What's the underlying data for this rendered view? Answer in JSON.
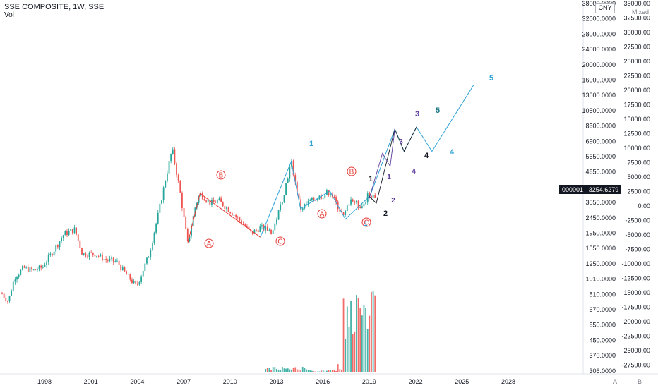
{
  "header": {
    "title": "SSE COMPOSITE, 1W, SSE",
    "volume_label": "Vol"
  },
  "currency_badge": "CNY",
  "scale_mode": "Mixed",
  "price_tag": {
    "symbol": "000001",
    "value": "3254.6279"
  },
  "axis_left_labels": [
    "38000.0000",
    "32000.0000",
    "28000.0000",
    "24000.0000",
    "20000.0000",
    "16000.0000",
    "13000.0000",
    "10500.0000",
    "8500.0000",
    "6900.0000",
    "5650.0000",
    "4650.0000",
    "3850.0000",
    "3050.0000",
    "2450.0000",
    "1950.0000",
    "1550.0000",
    "1250.0000",
    "1010.0000",
    "810.0000",
    "670.0000",
    "550.0000",
    "450.0000",
    "370.0000",
    "306.0000"
  ],
  "axis_right_labels": [
    "35000.00",
    "32500.00",
    "30000.00",
    "27500.00",
    "25000.00",
    "22500.00",
    "20000.00",
    "17500.00",
    "15000.00",
    "12500.00",
    "10000.00",
    "7500.00",
    "5000.00",
    "2500.00",
    "0.00",
    "-2500.00",
    "-5000.00",
    "-7500.00",
    "-10000.00",
    "-12500.00",
    "-15000.00",
    "-17500.00",
    "-20000.00",
    "-22500.00",
    "-25000.00",
    "-27500.00"
  ],
  "time_axis": [
    "1998",
    "2001",
    "2004",
    "2007",
    "2010",
    "2013",
    "2016",
    "2019",
    "2022",
    "2025",
    "2028"
  ],
  "corner_buttons": [
    "A",
    "B"
  ],
  "wave_labels": {
    "red": [
      "A",
      "B",
      "C",
      "A",
      "B",
      "C"
    ],
    "cyan": [
      "1",
      "4",
      "5"
    ],
    "black": [
      "1",
      "2",
      "4"
    ],
    "purple": [
      "1",
      "2",
      "3",
      "4",
      "3"
    ],
    "teal": [
      "5"
    ],
    "blue": [
      "1"
    ]
  },
  "colors": {
    "up": "#26a69a",
    "down": "#ef5350",
    "line": "#ef5350",
    "wave_red": "#e53935",
    "wave_cyan": "#2ea3d8",
    "wave_black": "#131722",
    "wave_purple": "#5b3c9a",
    "wave_teal": "#1b7a86",
    "price_tag_bg": "#131722",
    "price_tag_text": "#ffffff",
    "axis_text": "#131722",
    "grid": "#ffffff"
  },
  "chart_data": {
    "type": "line",
    "title": "SSE COMPOSITE, 1W, SSE",
    "xlabel": "",
    "ylabel": "",
    "scale": "log",
    "ylim": [
      306,
      38000
    ],
    "x": [
      1996.8,
      1997.2,
      1997.6,
      1998.2,
      1998.8,
      1999.4,
      2000.2,
      2000.8,
      2001.5,
      2002.0,
      2002.8,
      2003.5,
      2004.2,
      2004.8,
      2005.5,
      2006.3,
      2006.9,
      2007.4,
      2007.8,
      2008.3,
      2008.8,
      2009.3,
      2009.6,
      2010.3,
      2010.8,
      2011.6,
      2012.3,
      2012.9,
      2013.5,
      2014.3,
      2014.9,
      2015.3,
      2015.5,
      2015.9,
      2016.1,
      2016.8,
      2017.5,
      2018.0,
      2018.6,
      2018.9,
      2019.3,
      2019.8,
      2020.1,
      2020.5,
      2020.9
    ],
    "values": [
      950,
      860,
      1170,
      1320,
      1270,
      1330,
      1680,
      2030,
      2150,
      1570,
      1580,
      1460,
      1430,
      1220,
      1040,
      1560,
      2620,
      4200,
      6000,
      3500,
      1800,
      2900,
      3400,
      3000,
      3100,
      2700,
      2350,
      2050,
      2200,
      2100,
      3100,
      4300,
      5100,
      3400,
      2800,
      3100,
      3300,
      3500,
      2800,
      2500,
      3200,
      2950,
      2900,
      3350,
      3250
    ],
    "price_scale_ticks": [
      38000,
      32000,
      28000,
      24000,
      20000,
      16000,
      13000,
      10500,
      8500,
      6900,
      5650,
      4650,
      3850,
      3050,
      2450,
      1950,
      1550,
      1250,
      1010,
      810,
      670,
      550,
      450,
      370,
      306
    ],
    "elliott_projection": {
      "wave_points": [
        {
          "label": "A",
          "date": 2008.8,
          "value": 1800
        },
        {
          "label": "B",
          "date": 2009.6,
          "value": 3400
        },
        {
          "label": "C",
          "date": 2013.5,
          "value": 1950
        },
        {
          "label": "1",
          "date": 2015.5,
          "value": 5100
        },
        {
          "label": "A",
          "date": 2016.1,
          "value": 2800
        },
        {
          "label": "B",
          "date": 2018.0,
          "value": 3500
        },
        {
          "label": "C",
          "date": 2019.0,
          "value": 2450
        },
        {
          "label": "3",
          "date": 2022.2,
          "value": 7700
        },
        {
          "label": "4",
          "date": 2022.8,
          "value": 5800
        },
        {
          "label": "5",
          "date": 2023.6,
          "value": 7900
        },
        {
          "label": "4",
          "date": 2024.6,
          "value": 5800
        },
        {
          "label": "5",
          "date": 2027.3,
          "value": 13500
        }
      ]
    }
  }
}
